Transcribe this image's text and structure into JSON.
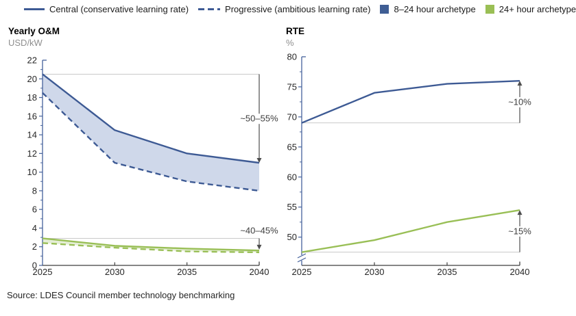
{
  "legend": {
    "items": [
      {
        "swatch": "solid-line",
        "color": "#3d5a94",
        "label": "Central (conservative learning rate)"
      },
      {
        "swatch": "dashed-line",
        "color": "#3d5a94",
        "label": "Progressive (ambitious learning rate)"
      },
      {
        "swatch": "square",
        "color": "#3f5e94",
        "label": "8–24 hour archetype"
      },
      {
        "swatch": "square",
        "color": "#9abf55",
        "label": "24+ hour archetype"
      }
    ]
  },
  "source": "Source: LDES Council member technology benchmarking",
  "colors": {
    "blue": "#3d5a94",
    "green": "#99bf56",
    "blue_fill": "#cfd8ea",
    "green_fill": "#e5eed6",
    "ref_line": "#c9c9c9",
    "axis": "#44619b",
    "x_axis": "#3f3f3f",
    "arrow": "#4d4d4d"
  },
  "chart_data": [
    {
      "type": "line",
      "title": "Yearly O&M",
      "unit": "USD/kW",
      "x": [
        2025,
        2030,
        2035,
        2040
      ],
      "ylim": [
        0,
        22
      ],
      "ytick_min": 0,
      "ytick_step": 2,
      "axis_break": false,
      "grid": false,
      "series": [
        {
          "name": "8–24 hour archetype — Central",
          "color": "#3d5a94",
          "dashed": false,
          "values": [
            20.5,
            14.5,
            12,
            11
          ]
        },
        {
          "name": "8–24 hour archetype — Progressive",
          "color": "#3d5a94",
          "dashed": true,
          "values": [
            18.5,
            11,
            9,
            8
          ]
        },
        {
          "name": "24+ hour archetype — Central",
          "color": "#99bf56",
          "dashed": false,
          "values": [
            2.9,
            2.1,
            1.8,
            1.6
          ]
        },
        {
          "name": "24+ hour archetype — Progressive",
          "color": "#99bf56",
          "dashed": true,
          "values": [
            2.4,
            1.9,
            1.5,
            1.4
          ]
        }
      ],
      "bands": [
        {
          "upper": 0,
          "lower": 1,
          "fill": "#cfd8ea"
        },
        {
          "upper": 2,
          "lower": 3,
          "fill": "#e5eed6"
        }
      ],
      "annotations": [
        {
          "label": "~50–55%",
          "ref_value": 20.5,
          "to_value": 11,
          "label_placement": "mid"
        },
        {
          "label": "~40–45%",
          "ref_value": 2.9,
          "to_value": 1.7,
          "label_placement": "above"
        }
      ]
    },
    {
      "type": "line",
      "title": "RTE",
      "unit": "%",
      "x": [
        2025,
        2030,
        2035,
        2040
      ],
      "ylim": [
        45.3,
        80
      ],
      "ytick_min": 50,
      "ytick_step": 5,
      "axis_break": true,
      "grid": false,
      "series": [
        {
          "name": "8–24 hour archetype",
          "color": "#3d5a94",
          "dashed": false,
          "values": [
            69,
            74,
            75.5,
            76
          ]
        },
        {
          "name": "24+ hour archetype",
          "color": "#99bf56",
          "dashed": false,
          "values": [
            47.5,
            49.5,
            52.5,
            54.5
          ]
        }
      ],
      "bands": [],
      "annotations": [
        {
          "label": "~10%",
          "ref_value": 69,
          "to_value": 76,
          "label_placement": "mid"
        },
        {
          "label": "~15%",
          "ref_value": 47.5,
          "to_value": 54.5,
          "label_placement": "mid"
        }
      ]
    }
  ]
}
